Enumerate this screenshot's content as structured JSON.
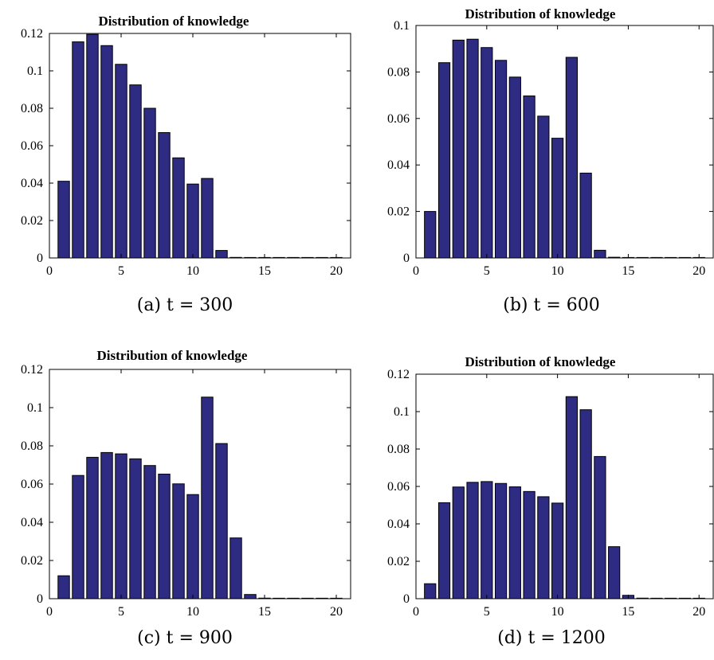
{
  "figure": {
    "colors": {
      "bar_fill": "#2e2b82",
      "bar_stroke": "#000000"
    }
  },
  "chart_data": [
    {
      "type": "bar",
      "title": "Distribution of knowledge",
      "caption": "(a) t = 300",
      "xlim": [
        0,
        21
      ],
      "ylim": [
        0,
        0.12
      ],
      "xticks": [
        "0",
        "5",
        "10",
        "15",
        "20"
      ],
      "yticks": [
        "0",
        "0.02",
        "0.04",
        "0.06",
        "0.08",
        "0.1",
        "0.12"
      ],
      "x": [
        1,
        2,
        3,
        4,
        5,
        6,
        7,
        8,
        9,
        10,
        11,
        12,
        13,
        14,
        15,
        16,
        17,
        18,
        19,
        20
      ],
      "values": [
        0.041,
        0.1155,
        0.1195,
        0.1135,
        0.1035,
        0.0925,
        0.08,
        0.067,
        0.0535,
        0.0395,
        0.0425,
        0.004,
        0.0003,
        0.0002,
        0.0001,
        0.0001,
        0.0001,
        0.0001,
        0.0001,
        0.0001
      ]
    },
    {
      "type": "bar",
      "title": "Distribution of knowledge",
      "caption": "(b) t = 600",
      "xlim": [
        0,
        21
      ],
      "ylim": [
        0,
        0.1
      ],
      "xticks": [
        "0",
        "5",
        "10",
        "15",
        "20"
      ],
      "yticks": [
        "0",
        "0.02",
        "0.04",
        "0.06",
        "0.08",
        "0.1"
      ],
      "x": [
        1,
        2,
        3,
        4,
        5,
        6,
        7,
        8,
        9,
        10,
        11,
        12,
        13,
        14,
        15,
        16,
        17,
        18,
        19,
        20
      ],
      "values": [
        0.02,
        0.084,
        0.0937,
        0.0941,
        0.0905,
        0.085,
        0.0778,
        0.0697,
        0.061,
        0.0515,
        0.0863,
        0.0365,
        0.0033,
        0.0003,
        0.0002,
        0.0001,
        0.0001,
        0.0001,
        0.0001,
        0.0001
      ]
    },
    {
      "type": "bar",
      "title": "Distribution of knowledge",
      "caption": "(c) t = 900",
      "xlim": [
        0,
        21
      ],
      "ylim": [
        0,
        0.12
      ],
      "xticks": [
        "0",
        "5",
        "10",
        "15",
        "20"
      ],
      "yticks": [
        "0",
        "0.02",
        "0.04",
        "0.06",
        "0.08",
        "0.1",
        "0.12"
      ],
      "x": [
        1,
        2,
        3,
        4,
        5,
        6,
        7,
        8,
        9,
        10,
        11,
        12,
        13,
        14,
        15,
        16,
        17,
        18,
        19,
        20
      ],
      "values": [
        0.012,
        0.0645,
        0.074,
        0.0765,
        0.0758,
        0.0732,
        0.0697,
        0.0652,
        0.0601,
        0.0545,
        0.1055,
        0.0812,
        0.0318,
        0.0022,
        0.0003,
        0.0002,
        0.0001,
        0.0001,
        0.0001,
        0.0001
      ]
    },
    {
      "type": "bar",
      "title": "Distribution of knowledge",
      "caption": "(d) t = 1200",
      "xlim": [
        0,
        21
      ],
      "ylim": [
        0,
        0.12
      ],
      "xticks": [
        "0",
        "5",
        "10",
        "15",
        "20"
      ],
      "yticks": [
        "0",
        "0.02",
        "0.04",
        "0.06",
        "0.08",
        "0.1",
        "0.12"
      ],
      "x": [
        1,
        2,
        3,
        4,
        5,
        6,
        7,
        8,
        9,
        10,
        11,
        12,
        13,
        14,
        15,
        16,
        17,
        18,
        19,
        20
      ],
      "values": [
        0.008,
        0.0513,
        0.0597,
        0.0622,
        0.0626,
        0.0616,
        0.0598,
        0.0573,
        0.0545,
        0.0511,
        0.108,
        0.101,
        0.076,
        0.0278,
        0.0018,
        0.0003,
        0.0002,
        0.0001,
        0.0001,
        0.0001
      ]
    }
  ]
}
